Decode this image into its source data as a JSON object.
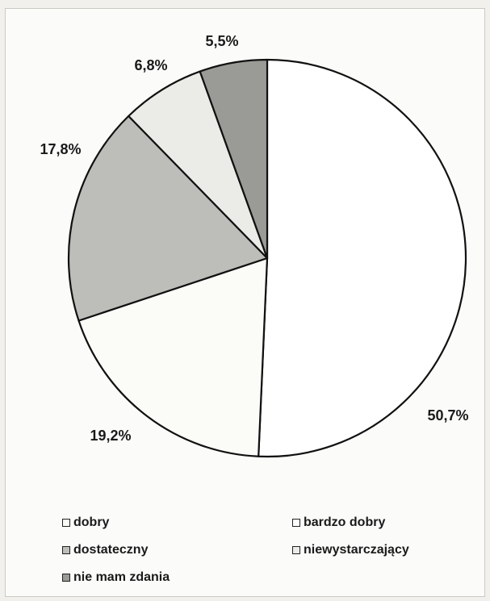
{
  "chart_data": {
    "type": "pie",
    "title": "",
    "start_angle_deg": 0,
    "direction": "clockwise",
    "slices": [
      {
        "label": "bardzo dobry",
        "value": 50.7,
        "display": "50,7%",
        "color": "#ffffff"
      },
      {
        "label": "dobry",
        "value": 19.2,
        "display": "19,2%",
        "color": "#fbfbf8"
      },
      {
        "label": "dostateczny",
        "value": 17.8,
        "display": "17,8%",
        "color": "#bdbdba"
      },
      {
        "label": "niewystarczający",
        "value": 6.8,
        "display": "6,8%",
        "color": "#ebebe8"
      },
      {
        "label": "nie mam zdania",
        "value": 5.5,
        "display": "5,5%",
        "color": "#9a9a97"
      }
    ],
    "legend": {
      "placement": "bottom",
      "items": [
        {
          "label": "dobry",
          "color": "#fbfbf8"
        },
        {
          "label": "bardzo dobry",
          "color": "#ffffff"
        },
        {
          "label": "dostateczny",
          "color": "#bdbdba"
        },
        {
          "label": "niewystarczający",
          "color": "#ebebe8"
        },
        {
          "label": "nie mam zdania",
          "color": "#9a9a97"
        }
      ]
    }
  }
}
